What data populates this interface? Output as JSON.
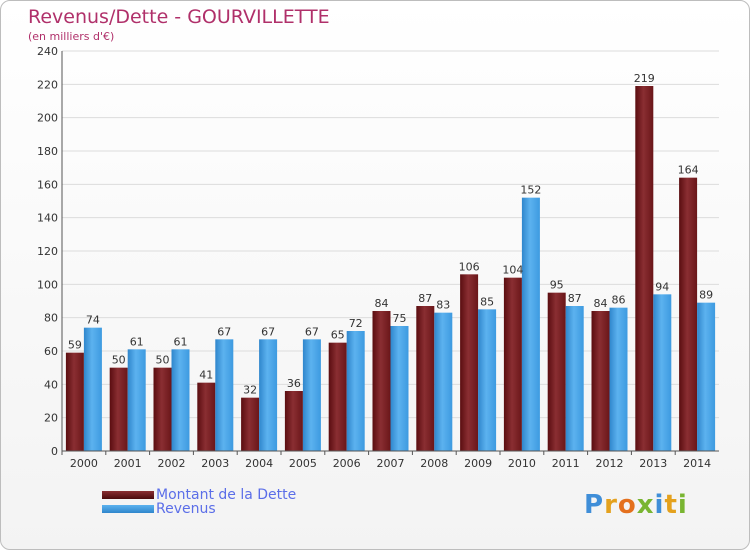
{
  "header": {
    "title": "Revenus/Dette - GOURVILLETTE",
    "subtitle": "(en milliers d'€)"
  },
  "legend": [
    {
      "label": "Montant de la Dette",
      "color": "#6b1518"
    },
    {
      "label": "Revenus",
      "color": "#3d9ae0"
    }
  ],
  "logo": {
    "text": "Proxiti"
  },
  "colors": {
    "dette_top": "#8a2e32",
    "dette_bottom": "#5a0d10",
    "revenus_top": "#5cb2ef",
    "revenus_bottom": "#2f86cc",
    "grid": "#dcdcdc",
    "axis": "#555555"
  },
  "chart_data": {
    "type": "bar",
    "title": "Revenus/Dette - GOURVILLETTE",
    "subtitle": "(en milliers d'€)",
    "categories": [
      "2000",
      "2001",
      "2002",
      "2003",
      "2004",
      "2005",
      "2006",
      "2007",
      "2008",
      "2009",
      "2010",
      "2011",
      "2012",
      "2013",
      "2014"
    ],
    "series": [
      {
        "name": "Montant de la Dette",
        "values": [
          59,
          50,
          50,
          41,
          32,
          36,
          65,
          84,
          87,
          106,
          104,
          95,
          84,
          219,
          164
        ]
      },
      {
        "name": "Revenus",
        "values": [
          74,
          61,
          61,
          67,
          67,
          67,
          72,
          75,
          83,
          85,
          152,
          87,
          86,
          94,
          89
        ]
      }
    ],
    "ylim": [
      0,
      240
    ],
    "yticks": [
      0,
      20,
      40,
      60,
      80,
      100,
      120,
      140,
      160,
      180,
      200,
      220,
      240
    ],
    "grid": true,
    "legend_position": "bottom-left"
  }
}
